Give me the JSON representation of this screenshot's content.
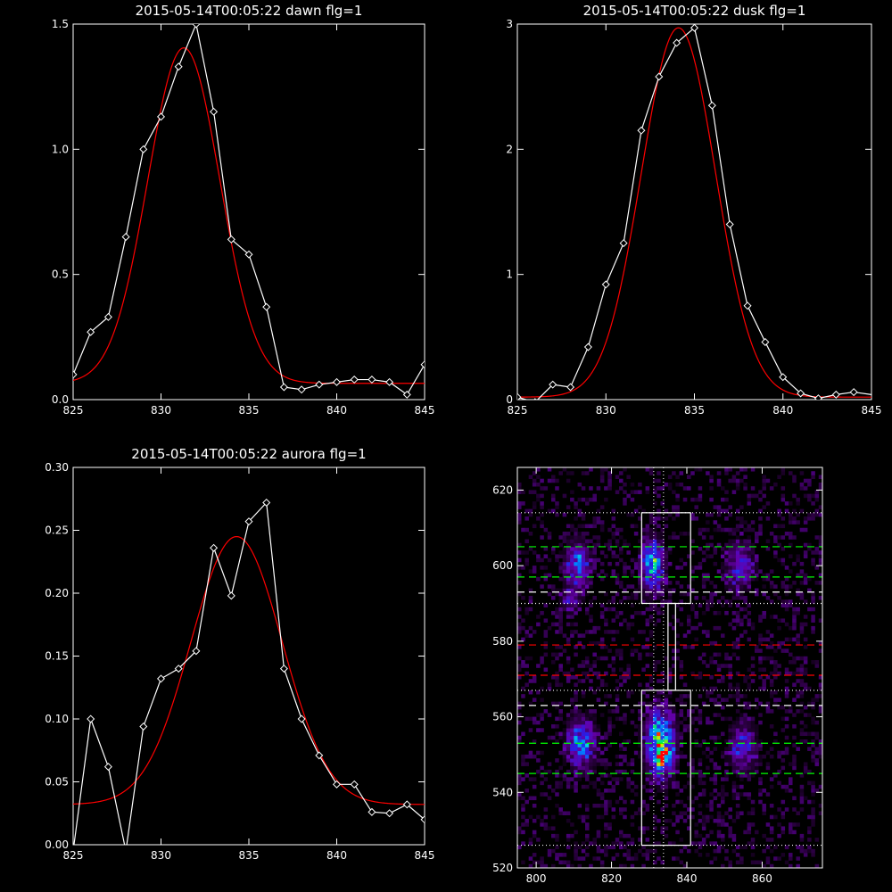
{
  "chart_data": [
    {
      "type": "line",
      "title": "2015-05-14T00:05:22 dawn flg=1",
      "xlim": [
        825,
        845
      ],
      "ylim": [
        0,
        1.5
      ],
      "xticks": [
        "825",
        "830",
        "835",
        "840",
        "845"
      ],
      "yticks": [
        "0.0",
        "0.5",
        "1.0",
        "1.5"
      ],
      "xtick_values": [
        825,
        830,
        835,
        840,
        845
      ],
      "ytick_values": [
        0,
        0.5,
        1.0,
        1.5
      ],
      "series": [
        {
          "color": "#ffffff",
          "markers": "diamond",
          "x": [
            825,
            826,
            827,
            828,
            829,
            830,
            831,
            832,
            833,
            834,
            835,
            836,
            837,
            838,
            839,
            840,
            841,
            842,
            843,
            844,
            845
          ],
          "y": [
            0.1,
            0.27,
            0.33,
            0.65,
            1.0,
            1.13,
            1.33,
            1.5,
            1.15,
            0.64,
            0.58,
            0.37,
            0.05,
            0.04,
            0.06,
            0.07,
            0.08,
            0.08,
            0.07,
            0.02,
            0.14
          ]
        },
        {
          "color": "#ff0000",
          "fit": "gaussian",
          "center": 831.3,
          "sigma": 2.05,
          "amplitude": 1.34,
          "baseline": 0.065
        }
      ]
    },
    {
      "type": "line",
      "title": "2015-05-14T00:05:22 dusk flg=1",
      "xlim": [
        825,
        845
      ],
      "ylim": [
        0,
        3
      ],
      "xticks": [
        "825",
        "830",
        "835",
        "840",
        "845"
      ],
      "yticks": [
        "0",
        "1",
        "2",
        "3"
      ],
      "xtick_values": [
        825,
        830,
        835,
        840,
        845
      ],
      "ytick_values": [
        0,
        1,
        2,
        3
      ],
      "series": [
        {
          "color": "#ffffff",
          "markers": "diamond",
          "x": [
            825,
            826,
            827,
            828,
            829,
            830,
            831,
            832,
            833,
            834,
            835,
            836,
            837,
            838,
            839,
            840,
            841,
            842,
            843,
            844,
            845
          ],
          "y": [
            0.02,
            -0.02,
            0.12,
            0.1,
            0.42,
            0.92,
            1.25,
            2.15,
            2.58,
            2.85,
            2.97,
            2.35,
            1.4,
            0.75,
            0.46,
            0.18,
            0.05,
            0.01,
            0.04,
            0.06,
            0.04
          ],
          "marker_x": [
            825,
            826,
            827,
            828,
            829,
            830,
            831,
            832,
            833,
            834,
            835,
            836,
            837,
            838,
            839,
            840,
            841,
            842,
            843,
            844
          ]
        },
        {
          "color": "#ff0000",
          "fit": "gaussian",
          "center": 834.1,
          "sigma": 2.1,
          "amplitude": 2.95,
          "baseline": 0.02
        }
      ]
    },
    {
      "type": "line",
      "title": "2015-05-14T00:05:22 aurora flg=1",
      "xlim": [
        825,
        845
      ],
      "ylim": [
        0,
        0.3
      ],
      "xticks": [
        "825",
        "830",
        "835",
        "840",
        "845"
      ],
      "yticks": [
        "0.00",
        "0.05",
        "0.10",
        "0.15",
        "0.20",
        "0.25",
        "0.30"
      ],
      "xtick_values": [
        825,
        830,
        835,
        840,
        845
      ],
      "ytick_values": [
        0,
        0.05,
        0.1,
        0.15,
        0.2,
        0.25,
        0.3
      ],
      "series": [
        {
          "color": "#ffffff",
          "markers": "diamond",
          "x": [
            825,
            826,
            827,
            828,
            829,
            830,
            831,
            832,
            833,
            834,
            835,
            836,
            837,
            838,
            839,
            840,
            841,
            842,
            843,
            844,
            845
          ],
          "y": [
            -0.005,
            0.1,
            0.062,
            -0.005,
            0.094,
            0.132,
            0.14,
            0.154,
            0.236,
            0.198,
            0.257,
            0.272,
            0.14,
            0.1,
            0.071,
            0.048,
            0.048,
            0.026,
            0.025,
            0.032,
            0.02
          ]
        },
        {
          "color": "#ff0000",
          "fit": "gaussian",
          "center": 834.3,
          "sigma": 2.6,
          "amplitude": 0.213,
          "baseline": 0.032
        }
      ]
    },
    {
      "type": "heatmap",
      "xlim": [
        795,
        876
      ],
      "ylim": [
        520,
        626
      ],
      "xticks": [
        "800",
        "820",
        "840",
        "860"
      ],
      "yticks": [
        "520",
        "540",
        "560",
        "580",
        "600",
        "620"
      ],
      "xtick_values": [
        800,
        820,
        840,
        860
      ],
      "ytick_values": [
        520,
        540,
        560,
        580,
        600,
        620
      ],
      "blobs": [
        {
          "cx": 811,
          "cy": 600,
          "sx": 2.2,
          "sy": 4.0,
          "a": 0.4
        },
        {
          "cx": 809,
          "cy": 591,
          "sx": 1.5,
          "sy": 2.0,
          "a": 0.22
        },
        {
          "cx": 831,
          "cy": 600,
          "sx": 2.0,
          "sy": 4.5,
          "a": 0.55
        },
        {
          "cx": 854,
          "cy": 600,
          "sx": 2.5,
          "sy": 4.0,
          "a": 0.3
        },
        {
          "cx": 812,
          "cy": 553,
          "sx": 2.4,
          "sy": 4.2,
          "a": 0.45
        },
        {
          "cx": 833,
          "cy": 553,
          "sx": 2.3,
          "sy": 5.5,
          "a": 0.8
        },
        {
          "cx": 834,
          "cy": 549,
          "sx": 1.2,
          "sy": 1.3,
          "a": 0.55
        },
        {
          "cx": 855,
          "cy": 552,
          "sx": 2.3,
          "sy": 4.0,
          "a": 0.32
        }
      ],
      "vlines_dotted_white": [
        831.2,
        833.8
      ],
      "hlines": [
        {
          "y": 614,
          "color": "#ffffff",
          "style": "dotted"
        },
        {
          "y": 605,
          "color": "#00ff00",
          "style": "dashed"
        },
        {
          "y": 597,
          "color": "#00ff00",
          "style": "dashed"
        },
        {
          "y": 593,
          "color": "#ffffff",
          "style": "dashed"
        },
        {
          "y": 590,
          "color": "#ffffff",
          "style": "dotted"
        },
        {
          "y": 579,
          "color": "#ff0000",
          "style": "dashed"
        },
        {
          "y": 571,
          "color": "#ff0000",
          "style": "dashed"
        },
        {
          "y": 567,
          "color": "#ffffff",
          "style": "dotted"
        },
        {
          "y": 563,
          "color": "#ffffff",
          "style": "dashed"
        },
        {
          "y": 553,
          "color": "#00ff00",
          "style": "dashed"
        },
        {
          "y": 545,
          "color": "#00ff00",
          "style": "dashed"
        },
        {
          "y": 526,
          "color": "#ffffff",
          "style": "dotted"
        }
      ],
      "boxes": [
        {
          "x0": 828,
          "x1": 841,
          "y0": 590,
          "y1": 614
        },
        {
          "x0": 828,
          "x1": 841,
          "y0": 526,
          "y1": 567
        },
        {
          "x0": 835,
          "x1": 837,
          "y0": 567,
          "y1": 590
        }
      ]
    }
  ],
  "colors": {
    "background": "#000000",
    "axes": "#ffffff",
    "data_line": "#ffffff",
    "fit_line": "#ff0000"
  }
}
